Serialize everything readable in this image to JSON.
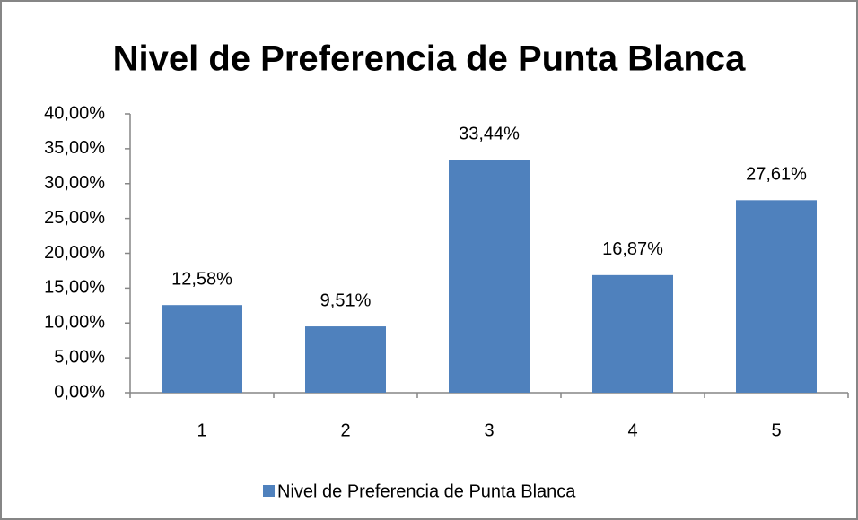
{
  "chart_data": {
    "type": "bar",
    "title": "Nivel de Preferencia de Punta Blanca",
    "categories": [
      "1",
      "2",
      "3",
      "4",
      "5"
    ],
    "series": [
      {
        "name": "Nivel de Preferencia de Punta Blanca",
        "color": "#4f81bd",
        "values": [
          12.58,
          9.51,
          33.44,
          16.87,
          27.61
        ],
        "value_labels": [
          "12,58%",
          "9,51%",
          "33,44%",
          "16,87%",
          "27,61%"
        ]
      }
    ],
    "ylim": [
      0,
      40
    ],
    "yticks": [
      {
        "value": 0,
        "label": "0,00%"
      },
      {
        "value": 5,
        "label": "5,00%"
      },
      {
        "value": 10,
        "label": "10,00%"
      },
      {
        "value": 15,
        "label": "15,00%"
      },
      {
        "value": 20,
        "label": "20,00%"
      },
      {
        "value": 25,
        "label": "25,00%"
      },
      {
        "value": 30,
        "label": "30,00%"
      },
      {
        "value": 35,
        "label": "35,00%"
      },
      {
        "value": 40,
        "label": "40,00%"
      }
    ],
    "grid": false,
    "legend": "bottom"
  }
}
